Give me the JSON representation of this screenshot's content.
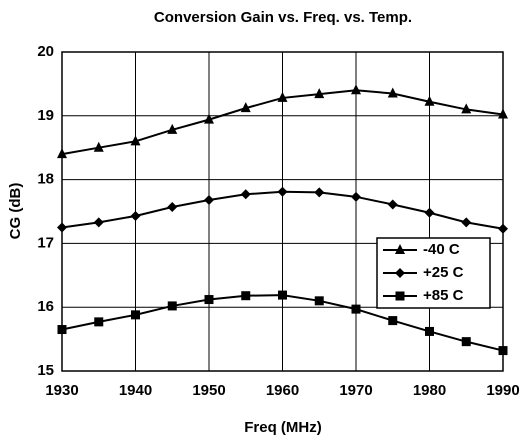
{
  "chart_data": {
    "type": "line",
    "title": "Conversion Gain vs. Freq. vs. Temp.",
    "xlabel": "Freq (MHz)",
    "ylabel": "CG (dB)",
    "x": [
      1930,
      1935,
      1940,
      1945,
      1950,
      1955,
      1960,
      1965,
      1970,
      1975,
      1980,
      1985,
      1990
    ],
    "series": [
      {
        "name": "-40 C",
        "color": "#000000",
        "marker": "triangle",
        "values": [
          18.4,
          18.5,
          18.6,
          18.78,
          18.94,
          19.12,
          19.28,
          19.34,
          19.4,
          19.35,
          19.22,
          19.1,
          19.02
        ]
      },
      {
        "name": "+25 C",
        "color": "#000000",
        "marker": "diamond",
        "values": [
          17.25,
          17.33,
          17.43,
          17.57,
          17.68,
          17.77,
          17.81,
          17.8,
          17.73,
          17.61,
          17.48,
          17.33,
          17.23
        ]
      },
      {
        "name": "+85 C",
        "color": "#000000",
        "marker": "square",
        "values": [
          15.65,
          15.77,
          15.88,
          16.02,
          16.12,
          16.18,
          16.19,
          16.1,
          15.97,
          15.79,
          15.62,
          15.46,
          15.32
        ]
      }
    ],
    "xlim": [
      1930,
      1990
    ],
    "xticks": [
      1930,
      1940,
      1950,
      1960,
      1970,
      1980,
      1990
    ],
    "ylim": [
      15,
      20
    ],
    "yticks": [
      15,
      16,
      17,
      18,
      19,
      20
    ],
    "grid": true,
    "legend": "lower right"
  }
}
